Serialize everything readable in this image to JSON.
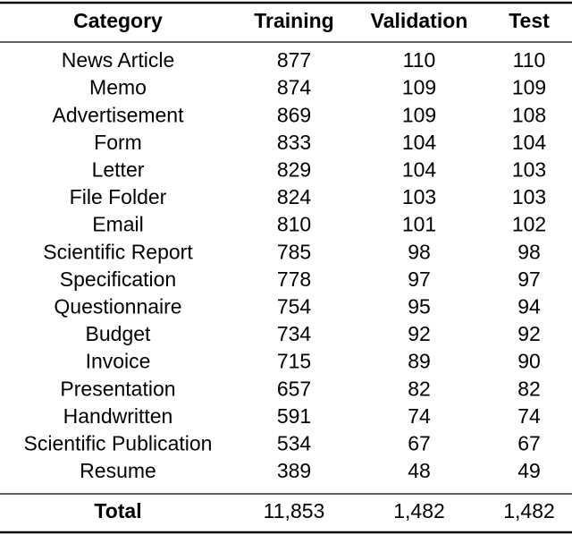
{
  "table": {
    "header": [
      "Category",
      "Training",
      "Validation",
      "Test"
    ],
    "rows": [
      [
        "News Article",
        877,
        110,
        110
      ],
      [
        "Memo",
        874,
        109,
        109
      ],
      [
        "Advertisement",
        869,
        109,
        108
      ],
      [
        "Form",
        833,
        104,
        104
      ],
      [
        "Letter",
        829,
        104,
        103
      ],
      [
        "File Folder",
        824,
        103,
        103
      ],
      [
        "Email",
        810,
        101,
        102
      ],
      [
        "Scientific Report",
        785,
        98,
        98
      ],
      [
        "Specification",
        778,
        97,
        97
      ],
      [
        "Questionnaire",
        754,
        95,
        94
      ],
      [
        "Budget",
        734,
        92,
        92
      ],
      [
        "Invoice",
        715,
        89,
        90
      ],
      [
        "Presentation",
        657,
        82,
        82
      ],
      [
        "Handwritten",
        591,
        74,
        74
      ],
      [
        "Scientific Publication",
        534,
        67,
        67
      ],
      [
        "Resume",
        389,
        48,
        49
      ]
    ],
    "total": [
      "Total",
      "11,853",
      "1,482",
      "1,482"
    ]
  }
}
